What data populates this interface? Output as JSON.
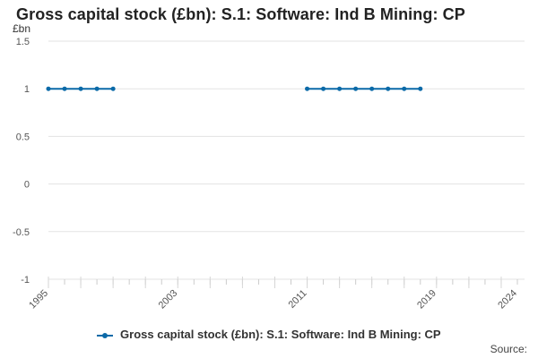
{
  "header": {
    "title": "Gross capital stock (£bn): S.1: Software: Ind B Mining: CP"
  },
  "footer": {
    "source_label": "Source:"
  },
  "colors": {
    "series": "#0b6aa8",
    "grid": "#e3e3e3",
    "tick_text": "#555555"
  },
  "chart_data": {
    "type": "line",
    "title": "Gross capital stock (£bn): S.1: Software: Ind B Mining: CP",
    "xlabel": "",
    "ylabel": "£bn",
    "ylim": [
      -1,
      1.5
    ],
    "yticks": [
      1.5,
      1,
      0.5,
      0,
      -0.5,
      -1
    ],
    "ytick_labels": [
      "1.5",
      "1",
      "0.5",
      "0",
      "-0.5",
      "-1"
    ],
    "xlim": [
      1995,
      2024
    ],
    "xtick_labels": [
      "1995",
      "2003",
      "2011",
      "2019",
      "2024"
    ],
    "xtick_values": [
      1995,
      2003,
      2011,
      2019,
      2024
    ],
    "grid": true,
    "legend_position": "bottom",
    "series": [
      {
        "name": "Gross capital stock (£bn): S.1: Software: Ind B Mining: CP",
        "segments": [
          {
            "x": [
              1995,
              1996,
              1997,
              1998,
              1999
            ],
            "y": [
              1,
              1,
              1,
              1,
              1
            ]
          },
          {
            "x": [
              2011,
              2012,
              2013,
              2014,
              2015,
              2016,
              2017,
              2018
            ],
            "y": [
              1,
              1,
              1,
              1,
              1,
              1,
              1,
              1
            ]
          }
        ]
      }
    ]
  }
}
